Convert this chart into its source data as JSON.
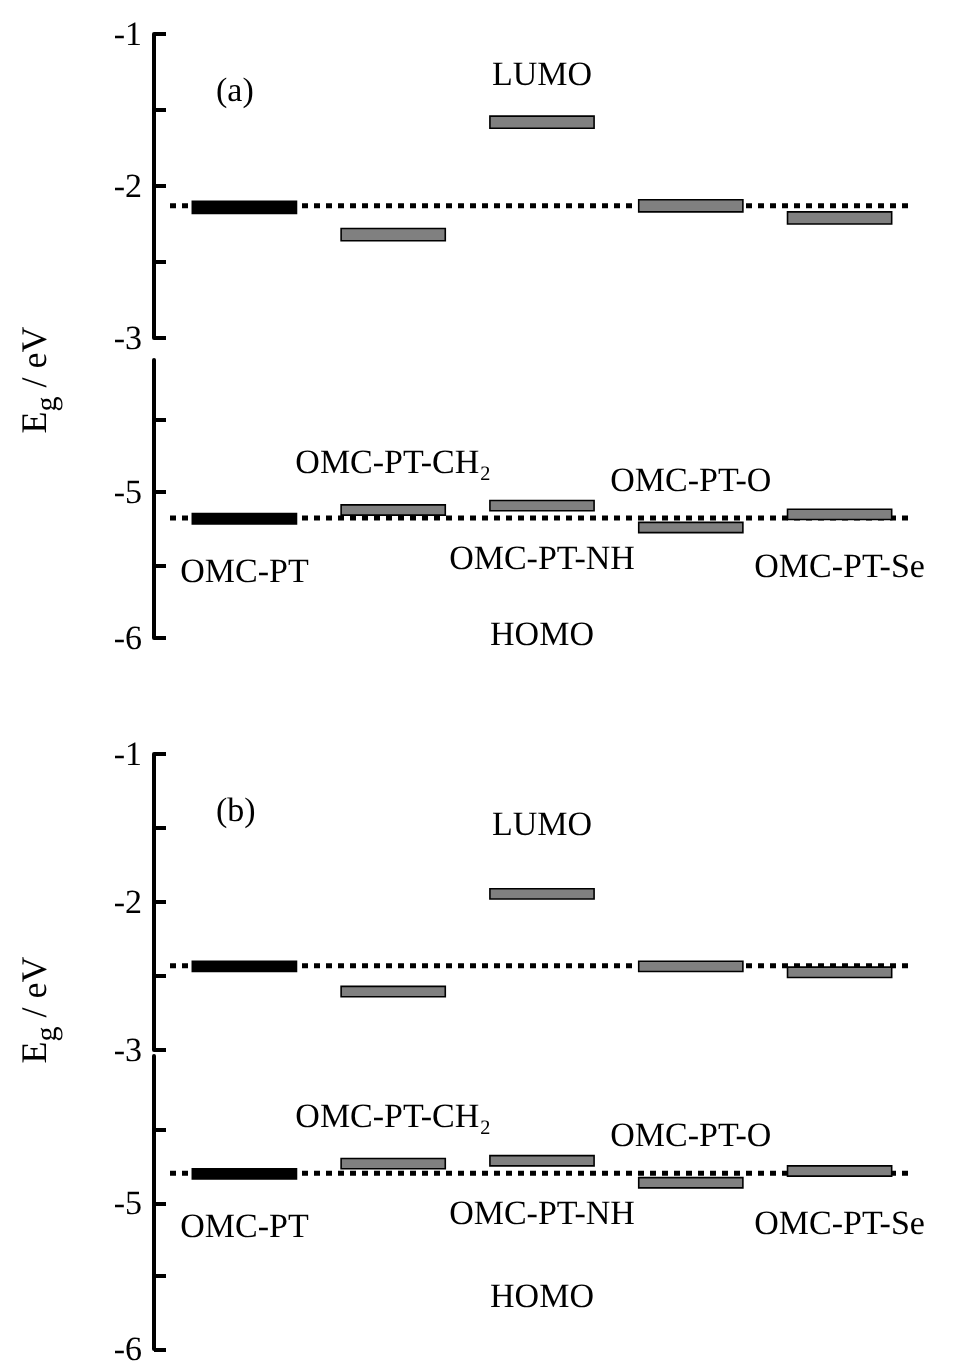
{
  "chart_data": [
    {
      "type": "bar",
      "categories": [
        null,
        null,
        null,
        null,
        null
      ],
      "base": [
        -2.1,
        -2.28,
        -1.54,
        -2.09,
        -2.17
      ],
      "values": [
        -0.08,
        -0.08,
        -0.08,
        -0.08,
        -0.08
      ],
      "colors": [
        "#000000",
        "#808080",
        "#808080",
        "#808080",
        "#808080"
      ],
      "ylim": [
        -3,
        -1
      ],
      "yticks": [
        -3,
        {
          "value": -2.5,
          "label": null
        },
        -2,
        {
          "value": -1.5,
          "label": null
        },
        -1
      ],
      "tick_labels": "y",
      "ref_lines": [
        {
          "axis": "y",
          "value": -2.13,
          "color": "#000000",
          "line_style": "dotted"
        }
      ],
      "annotations": [
        "(a)",
        "LUMO"
      ]
    },
    {
      "type": "bar",
      "categories": [
        null,
        null,
        null,
        null,
        null
      ],
      "base": [
        -5.15,
        -5.09,
        -5.06,
        -5.21,
        -5.12
      ],
      "values": [
        -0.07,
        -0.07,
        -0.07,
        -0.07,
        -0.07
      ],
      "colors": [
        "#000000",
        "#808080",
        "#808080",
        "#808080",
        "#808080"
      ],
      "ylim": [
        -6,
        -4.1
      ],
      "yticks": [
        -6,
        {
          "value": -5.5,
          "label": null
        },
        -5,
        {
          "value": -4.5,
          "label": null
        }
      ],
      "tick_labels": "y",
      "ylabel": "E$_{g}$ / eV",
      "ref_lines": [
        {
          "axis": "y",
          "value": -5.18,
          "color": "#000000",
          "line_style": "dotted"
        }
      ],
      "annotations": [
        "OMC-PT",
        "OMC-PT-CH₂",
        "OMC-PT-NH",
        "OMC-PT-O",
        "OMC-PT-Se",
        "HOMO"
      ]
    },
    {
      "type": "bar",
      "categories": [
        null,
        null,
        null,
        null,
        null
      ],
      "base": [
        -2.4,
        -2.57,
        -1.91,
        -2.4,
        -2.44
      ],
      "values": [
        -0.07,
        -0.07,
        -0.07,
        -0.07,
        -0.07
      ],
      "colors": [
        "#000000",
        "#808080",
        "#808080",
        "#808080",
        "#808080"
      ],
      "ylim": [
        -3,
        -1
      ],
      "yticks": [
        -3,
        {
          "value": -2.5,
          "label": null
        },
        -2,
        {
          "value": -1.5,
          "label": null
        },
        -1
      ],
      "tick_labels": "y",
      "ref_lines": [
        {
          "axis": "y",
          "value": -2.43,
          "color": "#000000",
          "line_style": "dotted"
        }
      ],
      "annotations": [
        "(b)",
        "LUMO"
      ]
    },
    {
      "type": "bar",
      "categories": [
        null,
        null,
        null,
        null,
        null
      ],
      "base": [
        -4.77,
        -4.7,
        -4.68,
        -4.83,
        -4.75
      ],
      "values": [
        -0.07,
        -0.07,
        -0.07,
        -0.07,
        -0.07
      ],
      "colors": [
        "#000000",
        "#808080",
        "#808080",
        "#808080",
        "#808080"
      ],
      "ylim": [
        -6,
        -4
      ],
      "yticks": [
        -6,
        {
          "value": -5.5,
          "label": null
        },
        -5,
        {
          "value": -4.5,
          "label": null
        }
      ],
      "tick_labels": "y",
      "ylabel": "E$_{g}$ / eV",
      "ref_lines": [
        {
          "axis": "y",
          "value": -4.8,
          "color": "#000000",
          "line_style": "dotted"
        }
      ],
      "annotations": [
        "OMC-PT",
        "OMC-PT-CH₂",
        "OMC-PT-NH",
        "OMC-PT-O",
        "OMC-PT-Se",
        "HOMO"
      ]
    }
  ]
}
